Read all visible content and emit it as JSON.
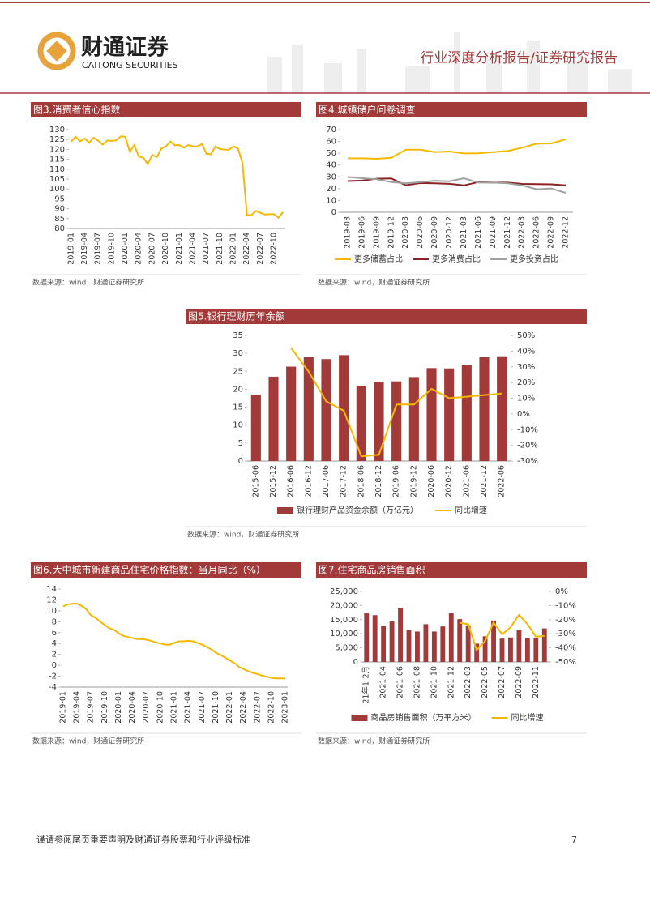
{
  "header": {
    "company_cn": "财通证券",
    "company_en": "CAITONG SECURITIES",
    "report_type": "行业深度分析报告/证券研究报告"
  },
  "footer": {
    "disclaimer": "谨请参阅尾页重要声明及财通证券股票和行业评级标准",
    "page": 7
  },
  "chart_data": [
    {
      "type": "line",
      "title": "图3.消费者信心指数",
      "source": "数据来源：wind，财通证券研究所",
      "categories": [
        "2019-01",
        null,
        null,
        "2019-04",
        null,
        null,
        "2019-07",
        null,
        null,
        "2019-10",
        null,
        null,
        "2020-01",
        null,
        null,
        "2020-04",
        null,
        null,
        "2020-07",
        null,
        null,
        "2020-10",
        null,
        null,
        "2021-01",
        null,
        null,
        "2021-04",
        null,
        null,
        "2021-07",
        null,
        null,
        "2021-10",
        null,
        null,
        "2022-01",
        null,
        null,
        "2022-04",
        null,
        null,
        "2022-07",
        null,
        null,
        "2022-10",
        null,
        null
      ],
      "values": [
        124,
        126.4,
        124.1,
        125.5,
        123.4,
        125.9,
        124.4,
        122.4,
        124.5,
        124.3,
        124.6,
        126.6,
        126.4,
        118.9,
        122.2,
        116.4,
        115.8,
        112.6,
        117.2,
        116.1,
        120.5,
        121.5,
        124,
        122.1,
        122.2,
        120.8,
        122.2,
        121.5,
        121.5,
        122.8,
        117.8,
        117.5,
        121.5,
        120.2,
        119.9,
        119.8,
        121.5,
        120.5,
        113.2,
        86.7,
        86.8,
        88.9,
        87.9,
        87,
        87.2,
        87.2,
        85.5,
        88.3
      ],
      "color": "#f5b800",
      "ylim": [
        80,
        130
      ],
      "yticks": [
        80,
        85,
        90,
        95,
        100,
        105,
        110,
        115,
        120,
        125,
        130
      ]
    },
    {
      "type": "line",
      "title": "图4.城镇储户问卷调查",
      "source": "数据来源：wind，财通证券研究所",
      "categories": [
        "2019-03",
        "2019-06",
        "2019-09",
        "2019-12",
        "2020-03",
        "2020-06",
        "2020-09",
        "2020-12",
        "2021-03",
        "2021-06",
        "2021-09",
        "2021-12",
        "2022-03",
        "2022-06",
        "2022-09",
        "2022-12"
      ],
      "series": [
        {
          "name": "更多储蓄占比",
          "color": "#f5b800",
          "values": [
            45.7,
            45.7,
            45.3,
            46.1,
            53,
            53,
            50.9,
            51.5,
            49.8,
            49.9,
            51,
            51.9,
            54.7,
            58.1,
            58.3,
            61.8
          ]
        },
        {
          "name": "更多消费占比",
          "color": "#8b2323",
          "values": [
            26.4,
            26.8,
            28.4,
            28.7,
            22.9,
            24.8,
            24.5,
            24.1,
            22.8,
            25.6,
            25.1,
            25.1,
            24,
            23.8,
            23.7,
            22.8
          ]
        },
        {
          "name": "更多投资占比",
          "color": "#a0a0a0",
          "values": [
            29.9,
            28.8,
            27.9,
            25.5,
            24.5,
            25.5,
            26.7,
            26.3,
            28.8,
            25.1,
            25.1,
            24.6,
            22.8,
            19.5,
            20.2,
            16.5
          ]
        }
      ],
      "ylim": [
        0,
        70
      ],
      "yticks": [
        0,
        10,
        20,
        30,
        40,
        50,
        60,
        70
      ],
      "legend": "bottom"
    },
    {
      "type": "bar",
      "title": "图5.银行理财历年余额",
      "source": "数据来源：wind，财通证券研究所",
      "categories": [
        "2015-06",
        "2015-12",
        "2016-06",
        "2016-12",
        "2017-06",
        "2017-12",
        "2018-06",
        "2018-12",
        "2019-06",
        "2019-12",
        "2020-06",
        "2020-12",
        "2021-06",
        "2021-12",
        "2022-06"
      ],
      "series": [
        {
          "name": "银行理财产品资金余额（万亿元）",
          "color": "#a33a3a",
          "type": "bar",
          "values": [
            18.5,
            23.5,
            26.3,
            29.1,
            28.4,
            29.5,
            21,
            22,
            22.2,
            23.4,
            25.9,
            25.8,
            26.8,
            29,
            29.2
          ]
        },
        {
          "name": "同比增速",
          "color": "#f5b800",
          "type": "line",
          "axis": "y2",
          "values": [
            null,
            null,
            42,
            27,
            8,
            2,
            -27,
            -26,
            6,
            6,
            16,
            10,
            11,
            12,
            13
          ]
        }
      ],
      "ylim": [
        0,
        35
      ],
      "yticks": [
        0,
        5,
        10,
        15,
        20,
        25,
        30,
        35
      ],
      "y2lim": [
        -30,
        50
      ],
      "y2ticks": [
        {
          "value": -30,
          "label": "-30%"
        },
        {
          "value": -20,
          "label": "-20%"
        },
        {
          "value": -10,
          "label": "-10%"
        },
        {
          "value": 0,
          "label": "0%"
        },
        {
          "value": 10,
          "label": "10%"
        },
        {
          "value": 20,
          "label": "20%"
        },
        {
          "value": 30,
          "label": "30%"
        },
        {
          "value": 40,
          "label": "40%"
        },
        {
          "value": 50,
          "label": "50%"
        }
      ],
      "legend": "bottom"
    },
    {
      "type": "line",
      "title": "图6.大中城市新建商品住宅价格指数：当月同比（%）",
      "source": "数据来源：wind，财通证券研究所",
      "categories": [
        "2019-01",
        null,
        null,
        "2019-04",
        null,
        null,
        "2019-07",
        null,
        null,
        "2019-10",
        null,
        null,
        "2020-01",
        null,
        null,
        "2020-04",
        null,
        null,
        "2020-07",
        null,
        null,
        "2020-10",
        null,
        null,
        "2021-01",
        null,
        null,
        "2021-04",
        null,
        null,
        "2021-07",
        null,
        null,
        "2021-10",
        null,
        null,
        "2022-01",
        null,
        null,
        "2022-04",
        null,
        null,
        "2022-07",
        null,
        null,
        "2022-10",
        null,
        null,
        "2023-01"
      ],
      "values": [
        10.8,
        11.2,
        11.3,
        11.3,
        10.9,
        10.3,
        9.2,
        8.7,
        8,
        7.4,
        6.8,
        6.5,
        5.9,
        5.4,
        5.2,
        5,
        4.8,
        4.8,
        4.7,
        4.5,
        4.2,
        4,
        3.8,
        3.8,
        4.1,
        4.4,
        4.4,
        4.5,
        4.4,
        4.1,
        3.8,
        3.4,
        2.9,
        2.3,
        1.9,
        1.4,
        0.9,
        0.4,
        -0.3,
        -0.7,
        -1.1,
        -1.4,
        -1.6,
        -1.9,
        -2.1,
        -2.3,
        -2.4,
        -2.4,
        -2.4
      ],
      "color": "#f5b800",
      "ylim": [
        -4,
        14
      ],
      "yticks": [
        -4,
        -2,
        0,
        2,
        4,
        6,
        8,
        10,
        12,
        14
      ]
    },
    {
      "type": "bar",
      "title": "图7.住宅商品房销售面积",
      "source": "数据来源：wind，财通证券研究所",
      "categories": [
        "21年1-2月",
        null,
        "2021-04",
        null,
        "2021-06",
        null,
        "2021-08",
        null,
        "2021-10",
        null,
        "2021-12",
        null,
        "2022-03",
        null,
        "2022-05",
        null,
        "2022-07",
        null,
        "2022-09",
        null,
        "2022-11",
        null
      ],
      "series": [
        {
          "name": "商品房销售面积（万平方米）",
          "color": "#a33a3a",
          "type": "bar",
          "values": [
            17300,
            16600,
            12900,
            14400,
            19200,
            11300,
            10800,
            13400,
            10800,
            12600,
            17300,
            15200,
            13000,
            6500,
            9100,
            14700,
            8300,
            8700,
            11300,
            8400,
            8600,
            11900
          ]
        },
        {
          "name": "同比增速",
          "color": "#f5b800",
          "type": "line",
          "axis": "y2",
          "values": [
            null,
            null,
            null,
            null,
            null,
            null,
            null,
            null,
            null,
            null,
            null,
            -22.2,
            -23.3,
            -41.7,
            -35.1,
            -22,
            -30.4,
            -25.3,
            -16.6,
            -23.2,
            -32.1,
            -31.5
          ]
        }
      ],
      "ylim": [
        0,
        25000
      ],
      "yticks": [
        0,
        {
          "value": 5000,
          "label": "5,000"
        },
        {
          "value": 10000,
          "label": "10,000"
        },
        {
          "value": 15000,
          "label": "15,000"
        },
        {
          "value": 20000,
          "label": "20,000"
        },
        {
          "value": 25000,
          "label": "25,000"
        }
      ],
      "y2lim": [
        -50,
        0
      ],
      "y2ticks": [
        {
          "value": -50,
          "label": "-50%"
        },
        {
          "value": -40,
          "label": "-40%"
        },
        {
          "value": -30,
          "label": "-30%"
        },
        {
          "value": -20,
          "label": "-20%"
        },
        {
          "value": -10,
          "label": "-10%"
        },
        {
          "value": 0,
          "label": "0%"
        }
      ],
      "legend": "bottom"
    }
  ]
}
